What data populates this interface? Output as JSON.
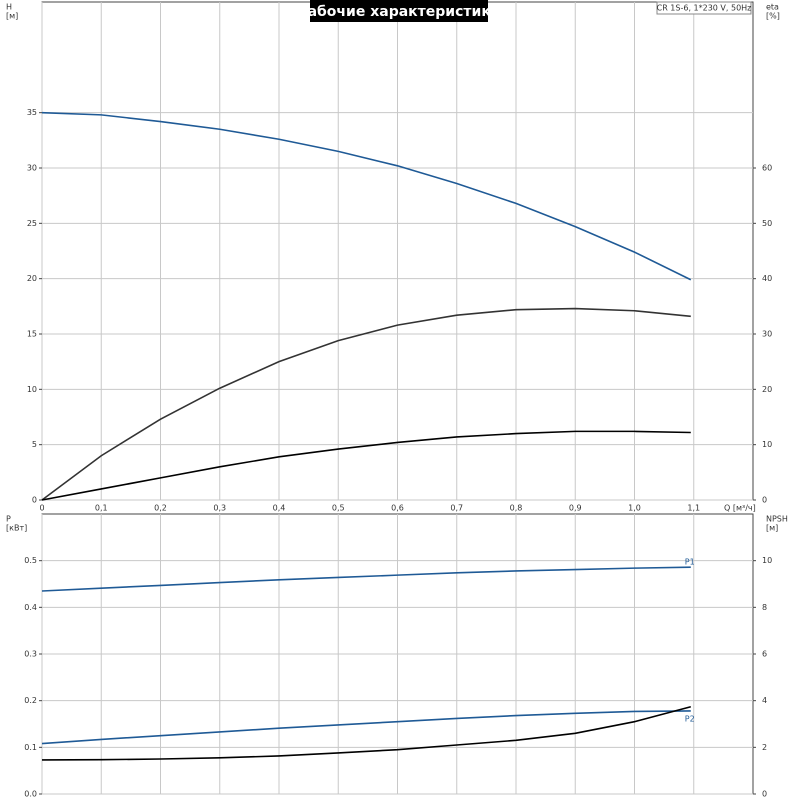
{
  "chart_data": [
    {
      "type": "line",
      "title": "Рабочие характеристики",
      "annotation": "CR 1S-6, 1*230 V, 50Hz",
      "y_label": "H",
      "y_unit": "[м]",
      "y2_label": "eta",
      "y2_unit": "[%]",
      "x_label": "Q [м³/ч]",
      "x": [
        0,
        0.1,
        0.2,
        0.3,
        0.4,
        0.5,
        0.6,
        0.7,
        0.8,
        0.9,
        1.0,
        1.095
      ],
      "xlim": [
        0,
        1.2
      ],
      "xticks": [
        0,
        {
          "value": 0.1,
          "label": "0,1"
        },
        {
          "value": 0.2,
          "label": "0,2"
        },
        {
          "value": 0.3,
          "label": "0,3"
        },
        {
          "value": 0.4,
          "label": "0,4"
        },
        {
          "value": 0.5,
          "label": "0,5"
        },
        {
          "value": 0.6,
          "label": "0,6"
        },
        {
          "value": 0.7,
          "label": "0,7"
        },
        {
          "value": 0.8,
          "label": "0,8"
        },
        {
          "value": 0.9,
          "label": "0,9"
        },
        {
          "value": 1.0,
          "label": "1,0"
        },
        {
          "value": 1.1,
          "label": "1,1"
        }
      ],
      "ylim": [
        0,
        45
      ],
      "yticks": [
        0,
        5,
        10,
        15,
        20,
        25,
        30,
        35
      ],
      "y2lim": [
        0,
        90
      ],
      "y2ticks": [
        0,
        10,
        20,
        30,
        40,
        50,
        60
      ],
      "grid": true,
      "series": [
        {
          "color": "#1f5a96",
          "axis": "y",
          "values": [
            35,
            34.8,
            34.2,
            33.5,
            32.6,
            31.5,
            30.2,
            28.6,
            26.8,
            24.7,
            22.4,
            19.9
          ]
        },
        {
          "color": "#333333",
          "axis": "y2",
          "values": [
            0,
            8,
            14.6,
            20.2,
            25,
            28.8,
            31.6,
            33.4,
            34.4,
            34.6,
            34.2,
            33.2
          ]
        },
        {
          "color": "#000000",
          "axis": "y2",
          "values": [
            0,
            2,
            4,
            6,
            7.8,
            9.2,
            10.4,
            11.4,
            12,
            12.4,
            12.4,
            12.2
          ]
        }
      ]
    },
    {
      "type": "line",
      "y_label": "P",
      "y_unit": "[кВт]",
      "y2_label": "NPSH",
      "y2_unit": "[м]",
      "x": [
        0,
        0.1,
        0.2,
        0.3,
        0.4,
        0.5,
        0.6,
        0.7,
        0.8,
        0.9,
        1.0,
        1.095
      ],
      "xlim": [
        0,
        1.2
      ],
      "xticks": [
        0,
        0.1,
        0.2,
        0.3,
        0.4,
        0.5,
        0.6,
        0.7,
        0.8,
        0.9,
        1.0,
        1.1
      ],
      "ylim": [
        0,
        0.6
      ],
      "yticks": [
        {
          "value": 0,
          "label": "0.0"
        },
        0.1,
        0.2,
        0.3,
        0.4,
        0.5
      ],
      "y2lim": [
        0,
        12
      ],
      "y2ticks": [
        0,
        2,
        4,
        6,
        8,
        10
      ],
      "grid": true,
      "series": [
        {
          "name": "P1",
          "color": "#1f5a96",
          "axis": "y",
          "values": [
            0.435,
            0.441,
            0.447,
            0.453,
            0.459,
            0.464,
            0.469,
            0.474,
            0.478,
            0.481,
            0.484,
            0.486
          ]
        },
        {
          "name": "P2",
          "color": "#1f5a96",
          "axis": "y",
          "values": [
            0.108,
            0.117,
            0.125,
            0.133,
            0.141,
            0.148,
            0.155,
            0.162,
            0.168,
            0.173,
            0.177,
            0.178
          ]
        },
        {
          "color": "#000000",
          "axis": "y2",
          "values": [
            1.46,
            1.47,
            1.5,
            1.55,
            1.63,
            1.76,
            1.9,
            2.1,
            2.3,
            2.6,
            3.1,
            3.74
          ]
        }
      ]
    }
  ]
}
